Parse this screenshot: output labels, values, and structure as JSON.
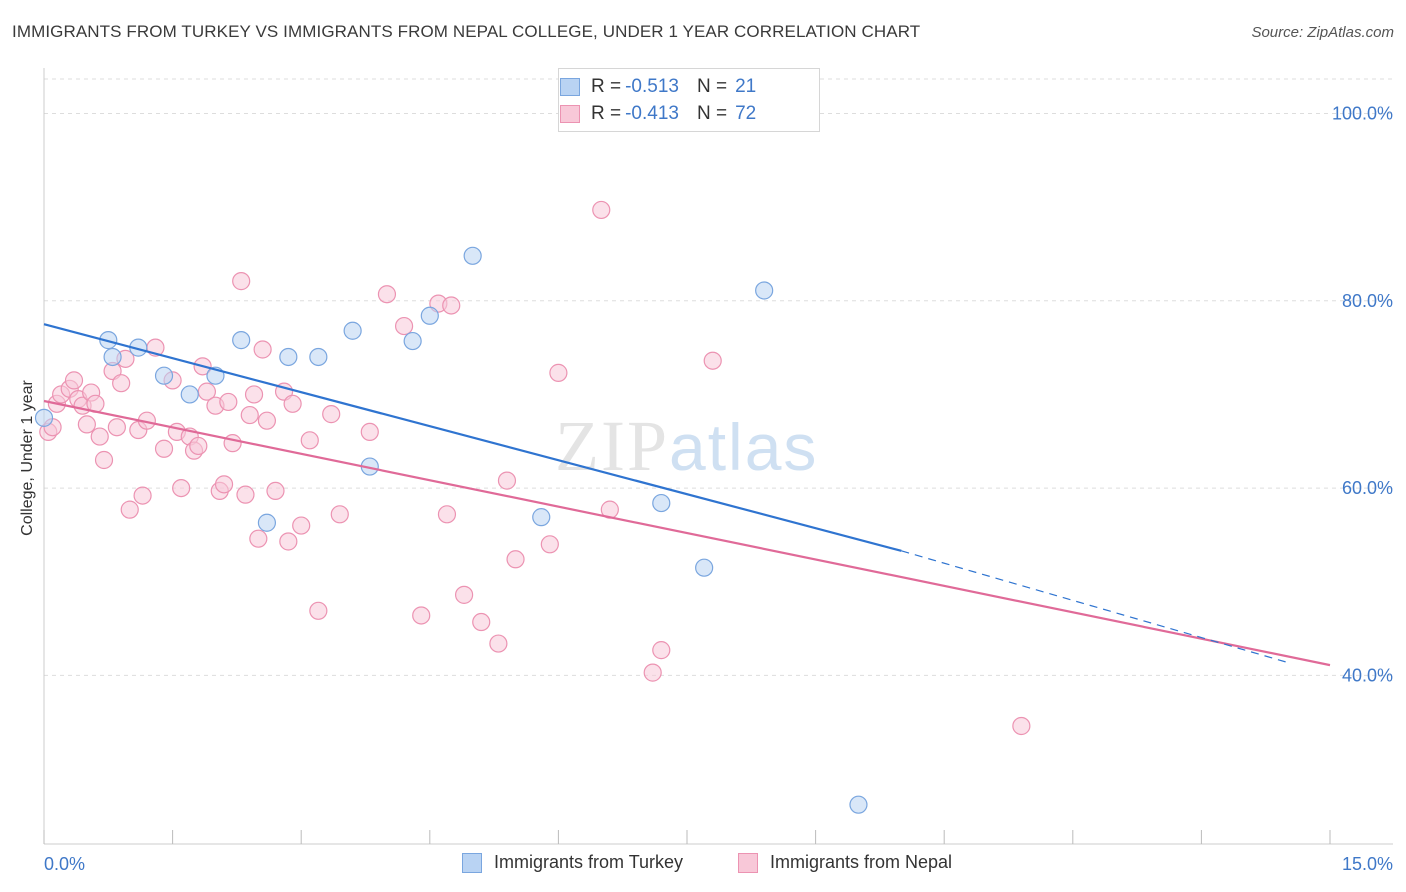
{
  "title": "IMMIGRANTS FROM TURKEY VS IMMIGRANTS FROM NEPAL COLLEGE, UNDER 1 YEAR CORRELATION CHART",
  "source": "Source: ZipAtlas.com",
  "watermark": {
    "zip": "ZIP",
    "atlas": "atlas"
  },
  "colors": {
    "turkey_fill": "#b9d3f3",
    "turkey_stroke": "#7aa6df",
    "turkey_line": "#2f74d0",
    "nepal_fill": "#f8c8d8",
    "nepal_stroke": "#ec93b2",
    "nepal_line": "#e06a98",
    "tick_text": "#3f78c8",
    "grid": "#dddddd"
  },
  "legend": {
    "rows": [
      {
        "r_label": "R = ",
        "r_value": "-0.513",
        "n_label": "N = ",
        "n_value": "21"
      },
      {
        "r_label": "R = ",
        "r_value": "-0.413",
        "n_label": "N = ",
        "n_value": "72"
      }
    ]
  },
  "chart_data": {
    "type": "scatter",
    "title": "IMMIGRANTS FROM TURKEY VS IMMIGRANTS FROM NEPAL COLLEGE, UNDER 1 YEAR CORRELATION CHART",
    "xlabel": "",
    "ylabel": "College, Under 1 year",
    "xlim": [
      0,
      15
    ],
    "ylim": [
      22,
      104
    ],
    "x_ticks": [
      "0.0%",
      "15.0%"
    ],
    "y_ticks": [
      {
        "value": 40,
        "label": "40.0%"
      },
      {
        "value": 60,
        "label": "60.0%"
      },
      {
        "value": 80,
        "label": "80.0%"
      },
      {
        "value": 100,
        "label": "100.0%"
      }
    ],
    "grid": true,
    "legend_position": "top-center",
    "series": [
      {
        "name": "Immigrants from Turkey",
        "color": "#b9d3f3",
        "points": [
          [
            0.0,
            67.5
          ],
          [
            0.75,
            75.8
          ],
          [
            0.8,
            74.0
          ],
          [
            1.1,
            75.0
          ],
          [
            1.4,
            72.0
          ],
          [
            1.7,
            70.0
          ],
          [
            2.0,
            72.0
          ],
          [
            2.3,
            75.8
          ],
          [
            2.6,
            56.3
          ],
          [
            2.85,
            74.0
          ],
          [
            3.2,
            74.0
          ],
          [
            3.6,
            76.8
          ],
          [
            3.8,
            62.3
          ],
          [
            4.3,
            75.7
          ],
          [
            4.5,
            78.4
          ],
          [
            5.0,
            84.8
          ],
          [
            5.8,
            56.9
          ],
          [
            7.2,
            58.4
          ],
          [
            7.7,
            51.5
          ],
          [
            8.4,
            81.1
          ],
          [
            9.5,
            26.2
          ]
        ],
        "trend": {
          "x0": 0.0,
          "y0": 77.5,
          "x1": 10.0,
          "y1": 53.3,
          "dash_to_x": 14.5,
          "dash_to_y": 41.4
        }
      },
      {
        "name": "Immigrants from Nepal",
        "color": "#f8c8d8",
        "points": [
          [
            0.05,
            66.0
          ],
          [
            0.1,
            66.5
          ],
          [
            0.15,
            69.0
          ],
          [
            0.2,
            70.0
          ],
          [
            0.3,
            70.6
          ],
          [
            0.35,
            71.5
          ],
          [
            0.4,
            69.5
          ],
          [
            0.45,
            68.8
          ],
          [
            0.5,
            66.8
          ],
          [
            0.55,
            70.2
          ],
          [
            0.6,
            69.0
          ],
          [
            0.65,
            65.5
          ],
          [
            0.7,
            63.0
          ],
          [
            0.8,
            72.5
          ],
          [
            0.85,
            66.5
          ],
          [
            0.9,
            71.2
          ],
          [
            0.95,
            73.8
          ],
          [
            1.0,
            57.7
          ],
          [
            1.1,
            66.2
          ],
          [
            1.15,
            59.2
          ],
          [
            1.2,
            67.2
          ],
          [
            1.3,
            75.0
          ],
          [
            1.4,
            64.2
          ],
          [
            1.5,
            71.5
          ],
          [
            1.55,
            66.0
          ],
          [
            1.6,
            60.0
          ],
          [
            1.7,
            65.5
          ],
          [
            1.75,
            64.0
          ],
          [
            1.8,
            64.5
          ],
          [
            1.85,
            73.0
          ],
          [
            1.9,
            70.3
          ],
          [
            2.0,
            68.8
          ],
          [
            2.05,
            59.7
          ],
          [
            2.1,
            60.4
          ],
          [
            2.15,
            69.2
          ],
          [
            2.2,
            64.8
          ],
          [
            2.3,
            82.1
          ],
          [
            2.35,
            59.3
          ],
          [
            2.4,
            67.8
          ],
          [
            2.45,
            70.0
          ],
          [
            2.5,
            54.6
          ],
          [
            2.55,
            74.8
          ],
          [
            2.6,
            67.2
          ],
          [
            2.7,
            59.7
          ],
          [
            2.8,
            70.3
          ],
          [
            2.85,
            54.3
          ],
          [
            2.9,
            69.0
          ],
          [
            3.0,
            56.0
          ],
          [
            3.1,
            65.1
          ],
          [
            3.2,
            46.9
          ],
          [
            3.35,
            67.9
          ],
          [
            3.45,
            57.2
          ],
          [
            3.8,
            66.0
          ],
          [
            4.0,
            80.7
          ],
          [
            4.2,
            77.3
          ],
          [
            4.4,
            46.4
          ],
          [
            4.6,
            79.7
          ],
          [
            4.7,
            57.2
          ],
          [
            4.75,
            79.5
          ],
          [
            4.9,
            48.6
          ],
          [
            5.1,
            45.7
          ],
          [
            5.3,
            43.4
          ],
          [
            5.4,
            60.8
          ],
          [
            5.5,
            52.4
          ],
          [
            5.9,
            54.0
          ],
          [
            6.0,
            72.3
          ],
          [
            6.5,
            89.7
          ],
          [
            6.6,
            57.7
          ],
          [
            7.1,
            40.3
          ],
          [
            7.2,
            42.7
          ],
          [
            7.8,
            73.6
          ],
          [
            11.4,
            34.6
          ]
        ],
        "trend": {
          "x0": 0.0,
          "y0": 69.3,
          "x1": 15.0,
          "y1": 41.1
        }
      }
    ]
  },
  "bottom_legend": [
    {
      "label": "Immigrants from Turkey"
    },
    {
      "label": "Immigrants from Nepal"
    }
  ]
}
